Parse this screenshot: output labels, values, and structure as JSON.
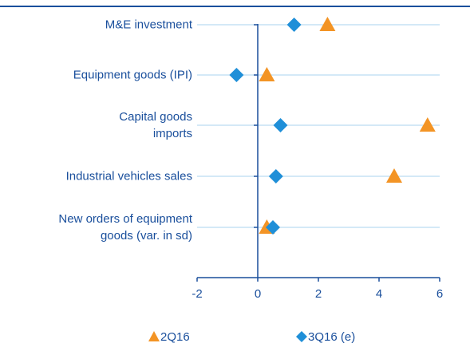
{
  "chart_data": {
    "type": "dot",
    "categories": [
      "M&E investment",
      "Equipment goods (IPI)",
      "Capital goods\nimports",
      "Industrial vehicles sales",
      "New orders of equipment\ngoods (var. in sd)"
    ],
    "series": [
      {
        "name": "2Q16",
        "color": "#f39425",
        "marker": "triangle",
        "values": [
          2.3,
          0.3,
          5.6,
          4.5,
          0.3
        ]
      },
      {
        "name": "3Q16 (e)",
        "color": "#1f8fd8",
        "marker": "diamond",
        "values": [
          1.2,
          -0.7,
          0.75,
          0.6,
          0.5
        ]
      }
    ],
    "xlim": [
      -2,
      6
    ],
    "xticks": [
      -2,
      0,
      2,
      4,
      6
    ],
    "grid": true
  }
}
